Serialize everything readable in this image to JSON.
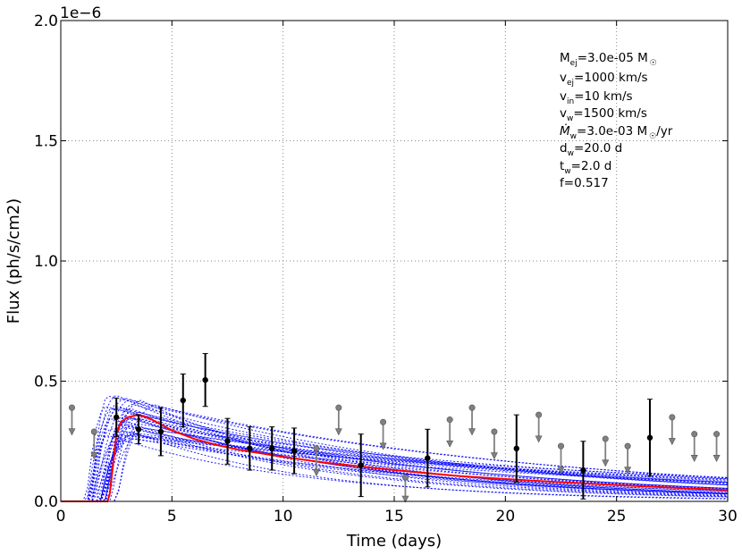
{
  "chart_data": {
    "type": "line",
    "title": "",
    "xlabel": "Time (days)",
    "ylabel": "Flux (ph/s/cm2)",
    "xlim": [
      0,
      30
    ],
    "ylim": [
      0,
      2e-06
    ],
    "y_offset_label": "1e−6",
    "x_ticks": [
      0,
      5,
      10,
      15,
      20,
      25,
      30
    ],
    "x_tick_labels": [
      "0",
      "5",
      "10",
      "15",
      "20",
      "25",
      "30"
    ],
    "y_ticks": [
      0,
      0.5,
      1.0,
      1.5,
      2.0
    ],
    "y_tick_labels": [
      "0.0",
      "0.5",
      "1.0",
      "1.5",
      "2.0"
    ],
    "y_tick_unit": 1e-06,
    "grid": true,
    "parameters": {
      "m_ej": {
        "main": "M",
        "sub": "ej",
        "value": "=3.0e-05 M",
        "tail_sub": "☉",
        "tail": ""
      },
      "v_ej": {
        "main": "v",
        "sub": "ej",
        "value": "=1000 km/s"
      },
      "v_in": {
        "main": "v",
        "sub": "in",
        "value": "=10 km/s"
      },
      "v_w": {
        "main": "v",
        "sub": "w",
        "value": "=1500 km/s"
      },
      "mdot_w": {
        "main": "Ṁ",
        "sub": "w",
        "value": "=3.0e-03 M",
        "tail_sub": "☉",
        "tail": "/yr"
      },
      "d_w": {
        "main": "d",
        "sub": "w",
        "value": "=20.0 d"
      },
      "t_w": {
        "main": "t",
        "sub": "w",
        "value": "=2.0 d"
      },
      "f": {
        "main": "f",
        "value": "=0.517"
      }
    },
    "best_fit_model": {
      "name": "best-fit model",
      "color": "#ff0000",
      "x": [
        0,
        2.1,
        2.2,
        2.35,
        2.5,
        2.7,
        3.0,
        3.5,
        4.0,
        4.5,
        5,
        6,
        7,
        8,
        10,
        12,
        15,
        18,
        20,
        22,
        25,
        28,
        30
      ],
      "y": [
        0,
        0,
        0.03,
        0.15,
        0.28,
        0.33,
        0.35,
        0.36,
        0.345,
        0.32,
        0.295,
        0.26,
        0.235,
        0.215,
        0.185,
        0.16,
        0.13,
        0.105,
        0.093,
        0.082,
        0.068,
        0.055,
        0.047
      ]
    },
    "sample_models": {
      "name": "posterior samples",
      "color": "#0000ff",
      "count": 36
    },
    "detections": {
      "name": "detections",
      "color": "#000000",
      "points": [
        {
          "x": 2.5,
          "y": 0.35,
          "err": 0.08
        },
        {
          "x": 3.5,
          "y": 0.3,
          "err": 0.06
        },
        {
          "x": 4.5,
          "y": 0.29,
          "err": 0.1
        },
        {
          "x": 5.5,
          "y": 0.42,
          "err": 0.11
        },
        {
          "x": 6.5,
          "y": 0.505,
          "err": 0.11
        },
        {
          "x": 7.5,
          "y": 0.25,
          "err": 0.095
        },
        {
          "x": 8.5,
          "y": 0.22,
          "err": 0.09
        },
        {
          "x": 9.5,
          "y": 0.22,
          "err": 0.09
        },
        {
          "x": 10.5,
          "y": 0.21,
          "err": 0.095
        },
        {
          "x": 13.5,
          "y": 0.15,
          "err": 0.13
        },
        {
          "x": 16.5,
          "y": 0.18,
          "err": 0.12
        },
        {
          "x": 20.5,
          "y": 0.22,
          "err": 0.14
        },
        {
          "x": 23.5,
          "y": 0.13,
          "err": 0.12
        },
        {
          "x": 26.5,
          "y": 0.265,
          "err": 0.16
        }
      ]
    },
    "upper_limits": {
      "name": "upper limits",
      "color": "#808080",
      "points": [
        {
          "x": 0.5,
          "y": 0.39
        },
        {
          "x": 1.5,
          "y": 0.29
        },
        {
          "x": 11.5,
          "y": 0.22
        },
        {
          "x": 12.5,
          "y": 0.39
        },
        {
          "x": 14.5,
          "y": 0.33
        },
        {
          "x": 15.5,
          "y": 0.1
        },
        {
          "x": 17.5,
          "y": 0.34
        },
        {
          "x": 18.5,
          "y": 0.39
        },
        {
          "x": 19.5,
          "y": 0.29
        },
        {
          "x": 21.5,
          "y": 0.36
        },
        {
          "x": 22.5,
          "y": 0.23
        },
        {
          "x": 24.5,
          "y": 0.26
        },
        {
          "x": 25.5,
          "y": 0.23
        },
        {
          "x": 27.5,
          "y": 0.35
        },
        {
          "x": 28.5,
          "y": 0.28
        },
        {
          "x": 29.5,
          "y": 0.28
        }
      ]
    }
  }
}
